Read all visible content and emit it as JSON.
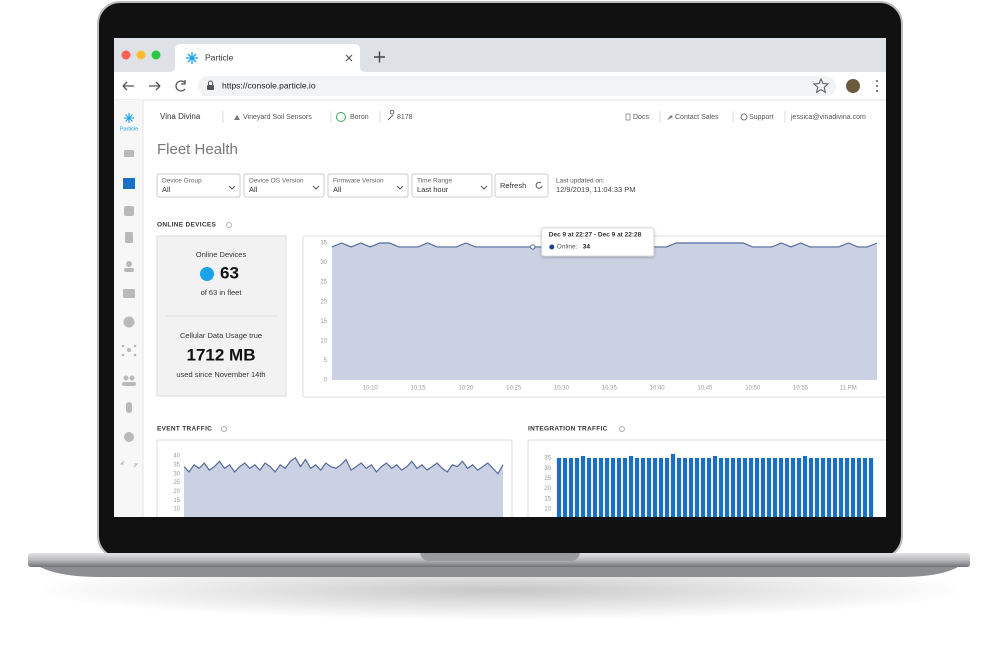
{
  "browser": {
    "tab_title": "Particle",
    "url": "https://console.particle.io"
  },
  "nav": {
    "org": "Vina Divina",
    "product": "Vineyard Soil Sensors",
    "platform": "Boron",
    "product_id": "8178",
    "docs": "Docs",
    "contact_sales": "Contact Sales",
    "support": "Support",
    "user": "jessica@vinadivina.com"
  },
  "sidebar": {
    "logo": "Particle"
  },
  "page": {
    "title": "Fleet Health",
    "filters": [
      {
        "label": "Device Group",
        "value": "All"
      },
      {
        "label": "Device OS Version",
        "value": "All"
      },
      {
        "label": "Firmware Version",
        "value": "All"
      },
      {
        "label": "Time Range",
        "value": "Last hour"
      }
    ],
    "refresh": "Refresh",
    "last_updated_label": "Last updated on:",
    "last_updated": "12/9/2019, 11:04:33 PM",
    "online_section": "ONLINE DEVICES",
    "online_card": {
      "title": "Online Devices",
      "count": 63,
      "fleet": "of 63 in fleet",
      "data_title": "Cellular Data Usage true",
      "data_value": "1712 MB",
      "data_since": "used since November 14th"
    },
    "event_section": "EVENT TRAFFIC",
    "integration_section": "INTEGRATION TRAFFIC"
  },
  "chart_data": [
    {
      "type": "area",
      "color": "#c9d1e3",
      "line_color": "#56699a",
      "categories": [
        null,
        null,
        null,
        null,
        "10:10",
        null,
        null,
        null,
        null,
        "10:15",
        null,
        null,
        null,
        null,
        "10:20",
        null,
        null,
        null,
        null,
        "10:25",
        null,
        null,
        null,
        null,
        "10:30",
        null,
        null,
        null,
        null,
        "10:35",
        null,
        null,
        null,
        null,
        "10:40",
        null,
        null,
        null,
        null,
        "10:45",
        null,
        null,
        null,
        null,
        "10:50",
        null,
        null,
        null,
        null,
        "10:55",
        null,
        null,
        null,
        null,
        "11 PM",
        null,
        null,
        null
      ],
      "values": [
        34,
        35,
        34,
        35,
        34,
        35,
        35,
        34,
        34,
        34,
        35,
        34,
        34,
        34,
        35,
        34,
        34,
        34,
        34,
        34,
        34,
        34,
        34,
        34,
        34,
        34,
        34,
        34,
        34,
        34,
        34,
        34,
        34,
        34,
        34,
        34,
        35,
        35,
        35,
        35,
        35,
        35,
        35,
        35,
        34,
        34,
        34,
        35,
        34,
        35,
        34,
        34,
        34,
        34,
        35,
        34,
        34,
        35
      ],
      "ylim": [
        0,
        35
      ],
      "yticks": [
        0,
        5,
        10,
        15,
        20,
        25,
        30,
        35
      ],
      "tooltip": {
        "index": 21,
        "title": "Dec 9 at 22:27 - Dec 9 at 22:28",
        "label": "Online:",
        "value": 34,
        "color": "#1f3f8f"
      }
    },
    {
      "type": "area",
      "color": "#c9d1e3",
      "line_color": "#56699a",
      "values": [
        34,
        31,
        35,
        33,
        36,
        32,
        34,
        37,
        33,
        35,
        31,
        34,
        36,
        33,
        35,
        32,
        36,
        34,
        31,
        35,
        33,
        37,
        39,
        34,
        38,
        33,
        35,
        32,
        36,
        34,
        33,
        35,
        38,
        32,
        34,
        36,
        33,
        35,
        31,
        34,
        36,
        33,
        35,
        32,
        34,
        37,
        33,
        35,
        32,
        34,
        36,
        33,
        31,
        35,
        34,
        37,
        33,
        35,
        32,
        34,
        36,
        33,
        30,
        35
      ],
      "ylim": [
        0,
        40
      ],
      "yticks": [
        10,
        15,
        20,
        25,
        30,
        35,
        40
      ]
    },
    {
      "type": "bar",
      "color": "#1b6ec2",
      "values": [
        35,
        35,
        35,
        35,
        36,
        35,
        35,
        35,
        35,
        35,
        35,
        35,
        36,
        35,
        35,
        35,
        35,
        35,
        35,
        37,
        35,
        35,
        35,
        35,
        35,
        35,
        36,
        35,
        35,
        35,
        35,
        35,
        35,
        35,
        35,
        35,
        35,
        35,
        35,
        35,
        35,
        36,
        35,
        35,
        35,
        35,
        35,
        35,
        35,
        35,
        35,
        35,
        35
      ],
      "ylim": [
        0,
        35
      ],
      "yticks": [
        10,
        15,
        20,
        25,
        30,
        35
      ]
    }
  ]
}
